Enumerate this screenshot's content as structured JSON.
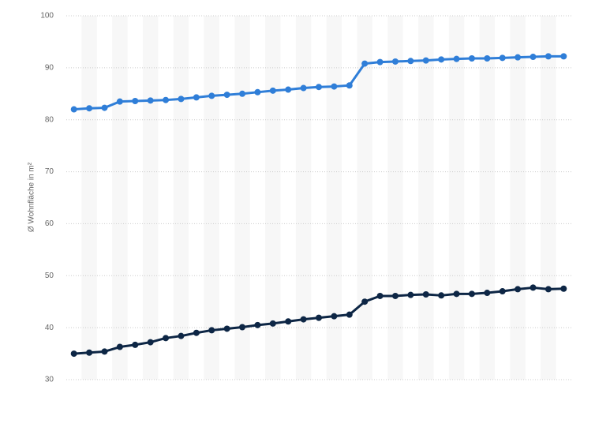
{
  "chart_data": {
    "type": "line",
    "y_label": "Ø Wohnfläche in m²",
    "categories": [
      null,
      null,
      null,
      null,
      null,
      null,
      null,
      null,
      null,
      null,
      null,
      null,
      null,
      null,
      null,
      null,
      null,
      null,
      null,
      null,
      null,
      null,
      null,
      null,
      null,
      null,
      null,
      null,
      null,
      null,
      null,
      null,
      null
    ],
    "series": [
      {
        "color": "#2f7ed8",
        "values": [
          82.0,
          82.2,
          82.3,
          83.5,
          83.6,
          83.7,
          83.8,
          84.0,
          84.3,
          84.6,
          84.8,
          85.0,
          85.3,
          85.6,
          85.8,
          86.1,
          86.3,
          86.4,
          86.6,
          90.8,
          91.1,
          91.2,
          91.3,
          91.4,
          91.6,
          91.7,
          91.8,
          91.8,
          91.9,
          92.0,
          92.1,
          92.2,
          92.2
        ]
      },
      {
        "color": "#0d2645",
        "values": [
          35.0,
          35.2,
          35.4,
          36.3,
          36.7,
          37.2,
          38.0,
          38.4,
          39.0,
          39.5,
          39.8,
          40.1,
          40.5,
          40.8,
          41.2,
          41.6,
          41.9,
          42.2,
          42.5,
          45.0,
          46.1,
          46.1,
          46.3,
          46.4,
          46.2,
          46.5,
          46.5,
          46.7,
          47.0,
          47.4,
          47.7,
          47.4,
          47.5
        ]
      }
    ],
    "ylim": [
      30,
      100
    ],
    "yticks": [
      30,
      40,
      50,
      60,
      70,
      80,
      90,
      100
    ],
    "grid": true
  }
}
